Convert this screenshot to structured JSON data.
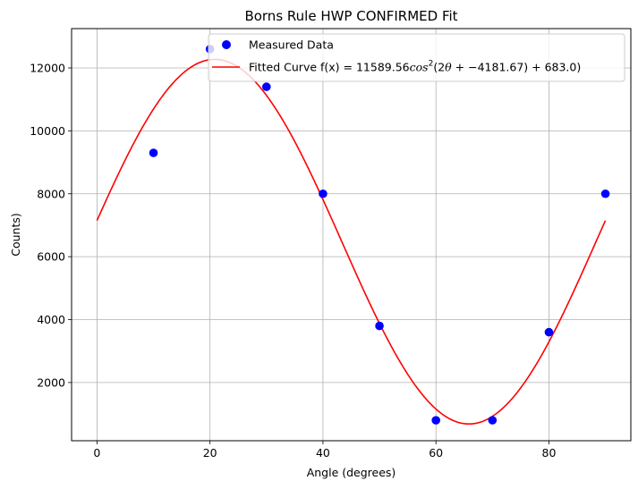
{
  "chart_data": {
    "type": "scatter+line",
    "title": "Borns Rule HWP CONFIRMED Fit",
    "xlabel": "Angle (degrees)",
    "ylabel": "Counts)",
    "xlim": [
      -4.5,
      94.5
    ],
    "ylim": [
      150,
      13250
    ],
    "xticks": [
      0,
      20,
      40,
      60,
      80
    ],
    "yticks": [
      2000,
      4000,
      6000,
      8000,
      10000,
      12000
    ],
    "grid": true,
    "legend_placement": "upper-right",
    "series": [
      {
        "name": "Measured Data",
        "kind": "scatter",
        "color": "#0000ff",
        "x": [
          10,
          20,
          30,
          40,
          50,
          60,
          70,
          80,
          90
        ],
        "y": [
          9300,
          12600,
          11400,
          8000,
          3800,
          800,
          800,
          3600,
          8000
        ]
      },
      {
        "name": "Fitted Curve",
        "kind": "line",
        "color": "#ff0000",
        "fit": {
          "A": 11589.56,
          "phase_deg": -4181.67,
          "offset": 683.0
        },
        "x_range": [
          0,
          90
        ]
      }
    ],
    "legend": {
      "scatter_label": "Measured Data",
      "line_prefix": "Fitted Curve f(x) = 11589.56",
      "line_cos": "cos",
      "line_sup": "2",
      "line_args": "(2",
      "line_theta": "θ",
      "line_rest": " + −4181.67) + 683.0)"
    }
  }
}
